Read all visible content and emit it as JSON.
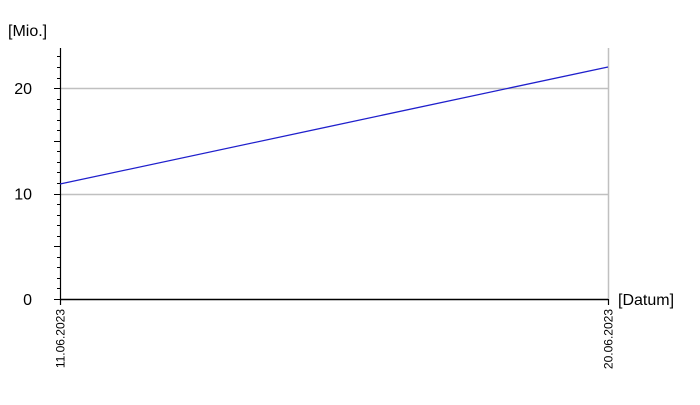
{
  "chart_data": {
    "type": "line",
    "ylabel": "[Mio.]",
    "xlabel": "[Datum]",
    "x_ticks": [
      "11.06.2023",
      "20.06.2023"
    ],
    "y_ticks": [
      0,
      10,
      20
    ],
    "ylim": [
      0,
      23.8
    ],
    "ygrid": true,
    "series": [
      {
        "x": [
          "11.06.2023",
          "20.06.2023"
        ],
        "values": [
          10.9,
          22.0
        ]
      }
    ],
    "colors": {
      "series": "#1f1fcc",
      "grid": "#c0c0c0",
      "axis": "#000000"
    }
  }
}
